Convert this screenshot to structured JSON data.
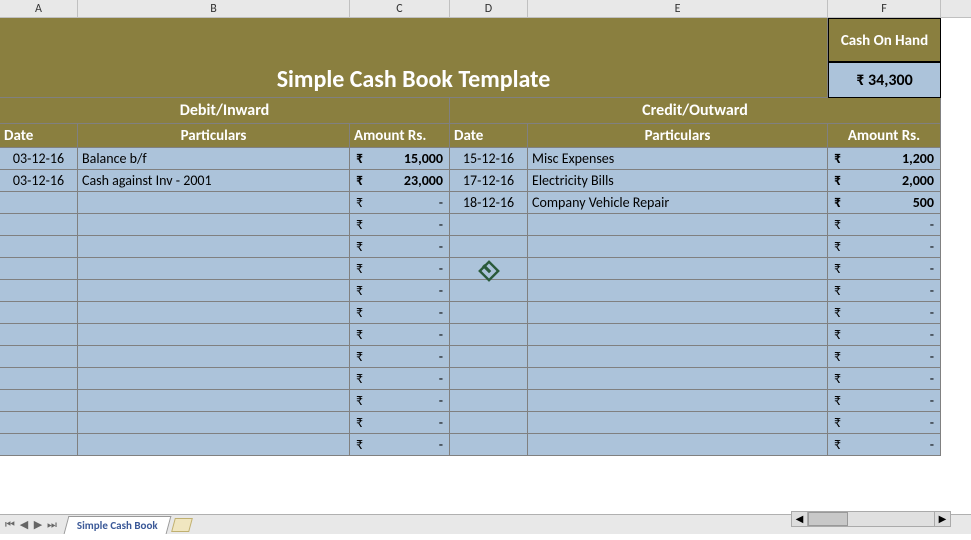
{
  "columns": [
    "A",
    "B",
    "C",
    "D",
    "E",
    "F"
  ],
  "title": "Simple Cash Book Template",
  "cash_on_hand_label": "Cash On Hand",
  "cash_on_hand_value": "₹ 34,300",
  "debit_label": "Debit/Inward",
  "credit_label": "Credit/Outward",
  "col_headers": {
    "date_left": "Date",
    "particulars_left": "Particulars",
    "amount_left": "Amount Rs.",
    "date_right": "Date",
    "particulars_right": "Particulars",
    "amount_right": "Amount Rs."
  },
  "currency": "₹",
  "debit_rows": [
    {
      "date": "03-12-16",
      "particulars": "Balance b/f",
      "amount": "15,000"
    },
    {
      "date": "03-12-16",
      "particulars": "Cash against Inv - 2001",
      "amount": "23,000"
    },
    {
      "date": "",
      "particulars": "",
      "amount": "-"
    },
    {
      "date": "",
      "particulars": "",
      "amount": "-"
    },
    {
      "date": "",
      "particulars": "",
      "amount": "-"
    },
    {
      "date": "",
      "particulars": "",
      "amount": "-"
    },
    {
      "date": "",
      "particulars": "",
      "amount": "-"
    },
    {
      "date": "",
      "particulars": "",
      "amount": "-"
    },
    {
      "date": "",
      "particulars": "",
      "amount": "-"
    },
    {
      "date": "",
      "particulars": "",
      "amount": "-"
    },
    {
      "date": "",
      "particulars": "",
      "amount": "-"
    },
    {
      "date": "",
      "particulars": "",
      "amount": "-"
    },
    {
      "date": "",
      "particulars": "",
      "amount": "-"
    },
    {
      "date": "",
      "particulars": "",
      "amount": "-"
    }
  ],
  "credit_rows": [
    {
      "date": "15-12-16",
      "particulars": "Misc Expenses",
      "amount": "1,200"
    },
    {
      "date": "17-12-16",
      "particulars": "Electricity Bills",
      "amount": "2,000"
    },
    {
      "date": "18-12-16",
      "particulars": "Company Vehicle Repair",
      "amount": "500"
    },
    {
      "date": "",
      "particulars": "",
      "amount": "-"
    },
    {
      "date": "",
      "particulars": "",
      "amount": "-"
    },
    {
      "date": "",
      "particulars": "",
      "amount": "-"
    },
    {
      "date": "",
      "particulars": "",
      "amount": "-"
    },
    {
      "date": "",
      "particulars": "",
      "amount": "-"
    },
    {
      "date": "",
      "particulars": "",
      "amount": "-"
    },
    {
      "date": "",
      "particulars": "",
      "amount": "-"
    },
    {
      "date": "",
      "particulars": "",
      "amount": "-"
    },
    {
      "date": "",
      "particulars": "",
      "amount": "-"
    },
    {
      "date": "",
      "particulars": "",
      "amount": "-"
    },
    {
      "date": "",
      "particulars": "",
      "amount": "-"
    }
  ],
  "sheet_tab": "Simple Cash Book",
  "colors": {
    "olive": "#8a7f3f",
    "blue_fill": "#acc3da",
    "grid_border": "#808080"
  }
}
